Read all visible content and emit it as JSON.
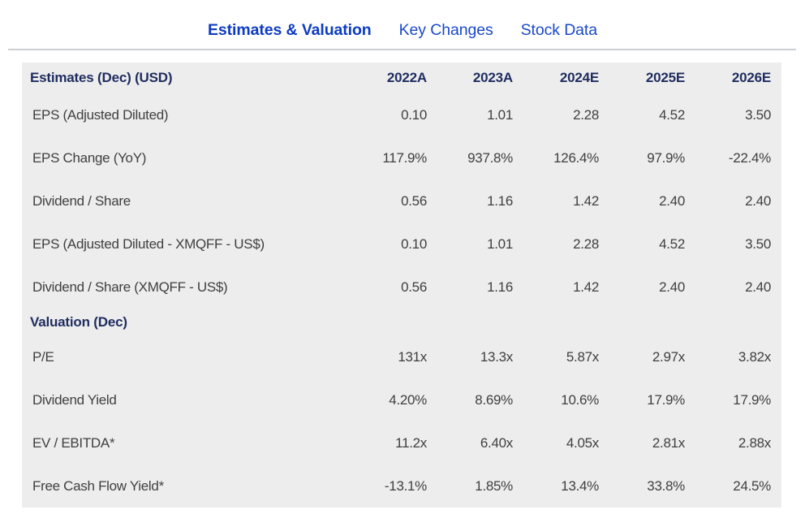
{
  "tabs": [
    {
      "label": "Estimates & Valuation",
      "active": true
    },
    {
      "label": "Key Changes",
      "active": false
    },
    {
      "label": "Stock Data",
      "active": false
    }
  ],
  "table": {
    "columns": [
      "2022A",
      "2023A",
      "2024E",
      "2025E",
      "2026E"
    ],
    "sections": [
      {
        "title": "Estimates (Dec) (USD)",
        "show_columns": true,
        "rows": [
          {
            "label": "EPS (Adjusted Diluted)",
            "values": [
              "0.10",
              "1.01",
              "2.28",
              "4.52",
              "3.50"
            ]
          },
          {
            "label": "EPS Change (YoY)",
            "values": [
              "117.9%",
              "937.8%",
              "126.4%",
              "97.9%",
              "-22.4%"
            ]
          },
          {
            "label": "Dividend / Share",
            "values": [
              "0.56",
              "1.16",
              "1.42",
              "2.40",
              "2.40"
            ]
          },
          {
            "label": "EPS (Adjusted Diluted - XMQFF - US$)",
            "values": [
              "0.10",
              "1.01",
              "2.28",
              "4.52",
              "3.50"
            ]
          },
          {
            "label": "Dividend / Share (XMQFF - US$)",
            "values": [
              "0.56",
              "1.16",
              "1.42",
              "2.40",
              "2.40"
            ]
          }
        ]
      },
      {
        "title": "Valuation (Dec)",
        "show_columns": false,
        "rows": [
          {
            "label": "P/E",
            "values": [
              "131x",
              "13.3x",
              "5.87x",
              "2.97x",
              "3.82x"
            ]
          },
          {
            "label": "Dividend Yield",
            "values": [
              "4.20%",
              "8.69%",
              "10.6%",
              "17.9%",
              "17.9%"
            ]
          },
          {
            "label": "EV / EBITDA*",
            "values": [
              "11.2x",
              "6.40x",
              "4.05x",
              "2.81x",
              "2.88x"
            ]
          },
          {
            "label": "Free Cash Flow Yield*",
            "values": [
              "-13.1%",
              "1.85%",
              "13.4%",
              "33.8%",
              "24.5%"
            ]
          }
        ]
      }
    ]
  },
  "colors": {
    "tab_blue_active": "#0d3cc2",
    "tab_blue": "#1a49cb",
    "header_navy": "#1f2c5f",
    "panel_bg": "#ededed",
    "data_text": "#3f3f3f",
    "divider": "#cccfd3"
  }
}
